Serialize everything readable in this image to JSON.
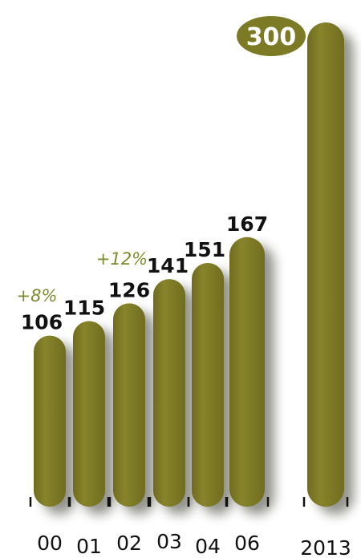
{
  "chart_data": {
    "type": "bar",
    "categories": [
      "00",
      "01",
      "02",
      "03",
      "04",
      "06",
      "2013"
    ],
    "values": [
      106,
      115,
      126,
      141,
      151,
      167,
      300
    ],
    "data_labels": [
      "106",
      "115",
      "126",
      "141",
      "151",
      "167",
      "300"
    ],
    "highlighted_category": "2013",
    "growth_annotations": [
      {
        "text": "+8%",
        "category": "00"
      },
      {
        "text": "+12%",
        "category": "02"
      }
    ],
    "ylim": [
      0,
      300
    ],
    "grid": false,
    "legend": "none"
  },
  "colors": {
    "bar": "#7d7a25",
    "bar_highlight": "#9a9638",
    "shadow": "#3a3a2e",
    "growth_text": "#7f8a2c",
    "label_text": "#111111",
    "badge_fill": "#7d7a25",
    "badge_text": "#ffffff",
    "tick": "#111111",
    "background": "#ffffff"
  }
}
